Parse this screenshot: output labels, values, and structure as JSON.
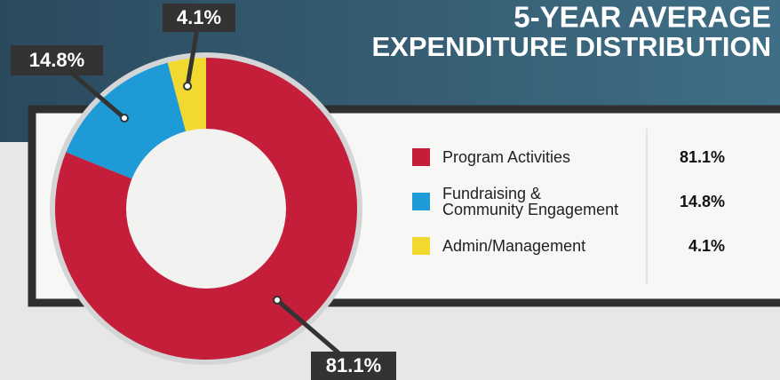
{
  "chart_data": {
    "type": "donut",
    "title_lines": [
      "5-YEAR AVERAGE",
      "EXPENDITURE DISTRIBUTION"
    ],
    "categories": [
      "Program Activities",
      "Fundraising &\nCommunity Engagement",
      "Admin/Management"
    ],
    "values": [
      81.1,
      14.8,
      4.1
    ],
    "value_labels": [
      "81.1%",
      "14.8%",
      "4.1%"
    ],
    "colors": [
      "#c41e3a",
      "#1e9bd7",
      "#f2d930"
    ]
  }
}
